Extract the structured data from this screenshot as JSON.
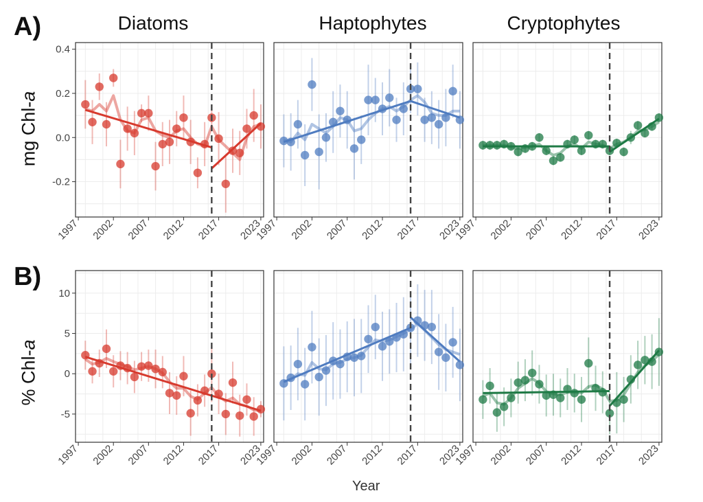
{
  "panel_labels": [
    "A)",
    "B)"
  ],
  "facets": [
    "Diatoms",
    "Haptophytes",
    "Cryptophytes"
  ],
  "xlabel": "Year",
  "ylabel_top": {
    "prefix": "mg Chl-",
    "italic": "a"
  },
  "ylabel_bottom": {
    "prefix": "% Chl-",
    "italic": "a"
  },
  "colors": {
    "Diatoms": "#d73a2e",
    "Haptophytes": "#4f7cc0",
    "Cryptophytes": "#1e7a45"
  },
  "chart_data": [
    {
      "type": "scatter",
      "panel": "A",
      "facet": "Diatoms",
      "xlim": [
        1997,
        2023
      ],
      "ylim": [
        -0.36,
        0.43
      ],
      "yticks": [
        -0.2,
        0.0,
        0.2,
        0.4
      ],
      "ytick_labels": [
        "-0.2",
        "0.0",
        "0.2",
        "0.4"
      ],
      "xticks": [
        1997,
        2002,
        2007,
        2012,
        2017,
        2023
      ],
      "breakpoint": 2016,
      "x": [
        1998,
        1999,
        2000,
        2001,
        2002,
        2003,
        2004,
        2005,
        2006,
        2007,
        2008,
        2009,
        2010,
        2011,
        2012,
        2013,
        2014,
        2015,
        2016,
        2017,
        2018,
        2019,
        2020,
        2021,
        2022,
        2023
      ],
      "y": [
        0.15,
        0.07,
        0.23,
        0.06,
        0.27,
        -0.12,
        0.04,
        0.02,
        0.11,
        0.11,
        -0.13,
        -0.03,
        -0.02,
        0.04,
        0.09,
        -0.02,
        -0.16,
        -0.03,
        0.09,
        -0.005,
        -0.21,
        -0.06,
        -0.07,
        0.04,
        0.1,
        0.05
      ],
      "err": [
        0.11,
        0.1,
        0.06,
        0.1,
        0.04,
        0.11,
        0.1,
        0.1,
        0.04,
        0.08,
        0.11,
        0.1,
        0.1,
        0.08,
        0.1,
        0.1,
        0.07,
        0.1,
        0.05,
        0.12,
        0.13,
        0.1,
        0.1,
        0.09,
        0.12,
        0.1
      ],
      "smooth": [
        0.13,
        0.12,
        0.15,
        0.12,
        0.19,
        0.08,
        0.03,
        0.02,
        0.08,
        0.09,
        0.03,
        0.01,
        0.0,
        0.03,
        0.04,
        0.0,
        -0.03,
        -0.04,
        0.05,
        -0.01,
        -0.04,
        -0.07,
        -0.1,
        0.0,
        0.05,
        0.06
      ],
      "trend_segments": [
        [
          1998,
          0.125,
          2016,
          -0.045
        ],
        [
          2016,
          -0.14,
          2023,
          0.065
        ]
      ]
    },
    {
      "type": "scatter",
      "panel": "A",
      "facet": "Haptophytes",
      "xlim": [
        1997,
        2023
      ],
      "ylim": [
        -0.36,
        0.43
      ],
      "xticks": [
        1997,
        2002,
        2007,
        2012,
        2017,
        2023
      ],
      "breakpoint": 2016,
      "x": [
        1998,
        1999,
        2000,
        2001,
        2002,
        2003,
        2004,
        2005,
        2006,
        2007,
        2008,
        2009,
        2010,
        2011,
        2012,
        2013,
        2014,
        2015,
        2016,
        2017,
        2018,
        2019,
        2020,
        2021,
        2022,
        2023
      ],
      "y": [
        -0.015,
        -0.02,
        0.06,
        -0.08,
        0.24,
        -0.065,
        0.0,
        0.07,
        0.12,
        0.08,
        -0.05,
        -0.01,
        0.17,
        0.17,
        0.13,
        0.18,
        0.08,
        0.13,
        0.22,
        0.22,
        0.08,
        0.09,
        0.06,
        0.09,
        0.21,
        0.08
      ],
      "err": [
        0.12,
        0.13,
        0.11,
        0.14,
        0.12,
        0.17,
        0.11,
        0.14,
        0.12,
        0.13,
        0.14,
        0.11,
        0.16,
        0.1,
        0.12,
        0.13,
        0.1,
        0.12,
        0.11,
        0.12,
        0.1,
        0.12,
        0.11,
        0.13,
        0.12,
        0.13
      ],
      "smooth": [
        -0.01,
        -0.02,
        0.02,
        -0.01,
        0.06,
        0.04,
        0.02,
        0.05,
        0.09,
        0.08,
        0.03,
        0.04,
        0.08,
        0.11,
        0.13,
        0.14,
        0.12,
        0.14,
        0.17,
        0.19,
        0.16,
        0.11,
        0.1,
        0.1,
        0.12,
        0.12
      ],
      "trend_segments": [
        [
          1998,
          -0.02,
          2016,
          0.165
        ],
        [
          2016,
          0.165,
          2023,
          0.09
        ]
      ]
    },
    {
      "type": "scatter",
      "panel": "A",
      "facet": "Cryptophytes",
      "xlim": [
        1997,
        2023
      ],
      "ylim": [
        -0.36,
        0.43
      ],
      "xticks": [
        1997,
        2002,
        2007,
        2012,
        2017,
        2023
      ],
      "breakpoint": 2016,
      "x": [
        1998,
        1999,
        2000,
        2001,
        2002,
        2003,
        2004,
        2005,
        2006,
        2007,
        2008,
        2009,
        2010,
        2011,
        2012,
        2013,
        2014,
        2015,
        2016,
        2017,
        2018,
        2019,
        2020,
        2021,
        2022,
        2023
      ],
      "y": [
        -0.035,
        -0.035,
        -0.035,
        -0.03,
        -0.04,
        -0.065,
        -0.05,
        -0.04,
        0.0,
        -0.06,
        -0.105,
        -0.09,
        -0.03,
        -0.01,
        -0.06,
        0.01,
        -0.03,
        -0.03,
        -0.06,
        -0.025,
        -0.065,
        0.0,
        0.055,
        0.02,
        0.05,
        0.09
      ],
      "err": [
        0.02,
        0.02,
        0.02,
        0.02,
        0.02,
        0.02,
        0.02,
        0.02,
        0.02,
        0.02,
        0.02,
        0.02,
        0.02,
        0.02,
        0.02,
        0.02,
        0.02,
        0.02,
        0.02,
        0.02,
        0.02,
        0.03,
        0.02,
        0.02,
        0.02,
        0.02
      ],
      "smooth": [
        -0.035,
        -0.035,
        -0.035,
        -0.035,
        -0.045,
        -0.05,
        -0.045,
        -0.04,
        -0.03,
        -0.06,
        -0.08,
        -0.07,
        -0.04,
        -0.03,
        -0.05,
        -0.02,
        -0.03,
        -0.035,
        -0.05,
        -0.03,
        -0.02,
        0.0,
        0.03,
        0.035,
        0.05,
        0.07
      ],
      "trend_segments": [
        [
          1998,
          -0.04,
          2016,
          -0.04
        ],
        [
          2016,
          -0.065,
          2023,
          0.085
        ]
      ]
    },
    {
      "type": "scatter",
      "panel": "B",
      "facet": "Diatoms",
      "xlim": [
        1997,
        2023
      ],
      "ylim": [
        -8.5,
        12.8
      ],
      "yticks": [
        -5,
        0,
        5,
        10
      ],
      "ytick_labels": [
        "-5",
        "0",
        "5",
        "10"
      ],
      "xticks": [
        1997,
        2002,
        2007,
        2012,
        2017,
        2023
      ],
      "breakpoint": 2016,
      "x": [
        1998,
        1999,
        2000,
        2001,
        2002,
        2003,
        2004,
        2005,
        2006,
        2007,
        2008,
        2009,
        2010,
        2011,
        2012,
        2013,
        2014,
        2015,
        2016,
        2017,
        2018,
        2019,
        2020,
        2021,
        2022,
        2023
      ],
      "y": [
        2.3,
        0.3,
        1.3,
        3.1,
        0.3,
        1.0,
        0.7,
        -0.4,
        0.9,
        1.0,
        0.6,
        0.2,
        -2.4,
        -2.7,
        -0.3,
        -4.9,
        -3.3,
        -2.1,
        0.0,
        -2.5,
        -5.0,
        -1.1,
        -5.2,
        -3.2,
        -5.3,
        -4.4
      ],
      "err": [
        1.8,
        1.5,
        1.7,
        2.4,
        2.0,
        1.8,
        2.0,
        2.0,
        1.8,
        2.0,
        2.4,
        2.0,
        2.6,
        2.4,
        2.5,
        2.8,
        2.0,
        2.0,
        3.5,
        2.5,
        2.6,
        2.6,
        2.6,
        2.0,
        2.4,
        1.0
      ],
      "smooth": [
        1.8,
        1.2,
        1.4,
        1.9,
        1.5,
        1.2,
        0.9,
        0.5,
        0.7,
        0.9,
        0.6,
        0.1,
        -1.0,
        -1.8,
        -1.8,
        -2.8,
        -3.2,
        -2.4,
        -1.7,
        -2.8,
        -3.4,
        -3.0,
        -3.8,
        -4.0,
        -4.5,
        -4.6
      ],
      "trend_segments": [
        [
          1998,
          2.1,
          2023,
          -4.6
        ]
      ]
    },
    {
      "type": "scatter",
      "panel": "B",
      "facet": "Haptophytes",
      "xlim": [
        1997,
        2023
      ],
      "ylim": [
        -8.5,
        12.8
      ],
      "xticks": [
        1997,
        2002,
        2007,
        2012,
        2017,
        2023
      ],
      "breakpoint": 2016,
      "x": [
        1998,
        1999,
        2000,
        2001,
        2002,
        2003,
        2004,
        2005,
        2006,
        2007,
        2008,
        2009,
        2010,
        2011,
        2012,
        2013,
        2014,
        2015,
        2016,
        2017,
        2018,
        2019,
        2020,
        2021,
        2022,
        2023
      ],
      "y": [
        -1.2,
        -0.5,
        1.2,
        -1.3,
        3.3,
        -0.4,
        0.4,
        1.6,
        1.2,
        2.1,
        2.0,
        2.2,
        4.3,
        5.8,
        3.4,
        4.0,
        4.5,
        4.9,
        5.7,
        6.6,
        6.0,
        5.8,
        2.7,
        2.0,
        3.9,
        1.1
      ],
      "err": [
        4.6,
        4.0,
        4.5,
        4.5,
        4.5,
        4.8,
        4.4,
        4.8,
        4.3,
        4.4,
        4.8,
        4.6,
        4.2,
        4.0,
        4.3,
        4.0,
        4.3,
        4.6,
        4.5,
        4.5,
        4.4,
        4.6,
        4.7,
        4.2,
        4.4,
        4.5
      ],
      "smooth": [
        -1.0,
        -0.7,
        0.0,
        -0.2,
        1.4,
        0.6,
        0.5,
        1.2,
        1.4,
        1.8,
        2.0,
        2.3,
        3.3,
        4.2,
        4.0,
        4.2,
        4.6,
        5.0,
        5.5,
        6.2,
        5.4,
        4.5,
        3.6,
        3.0,
        2.7,
        2.4
      ],
      "trend_segments": [
        [
          1998,
          -1.0,
          2016,
          5.7
        ],
        [
          2016,
          7.0,
          2023,
          1.5
        ]
      ]
    },
    {
      "type": "scatter",
      "panel": "B",
      "facet": "Cryptophytes",
      "xlim": [
        1997,
        2023
      ],
      "ylim": [
        -8.5,
        12.8
      ],
      "xticks": [
        1997,
        2002,
        2007,
        2012,
        2017,
        2023
      ],
      "breakpoint": 2016,
      "x": [
        1998,
        1999,
        2000,
        2001,
        2002,
        2003,
        2004,
        2005,
        2006,
        2007,
        2008,
        2009,
        2010,
        2011,
        2012,
        2013,
        2014,
        2015,
        2016,
        2017,
        2018,
        2019,
        2020,
        2021,
        2022,
        2023
      ],
      "y": [
        -3.2,
        -1.5,
        -4.8,
        -4.1,
        -3.0,
        -1.1,
        -0.8,
        0.1,
        -1.3,
        -2.7,
        -2.6,
        -3.0,
        -1.9,
        -2.4,
        -3.2,
        1.3,
        -1.8,
        -2.3,
        -4.9,
        -3.6,
        -3.2,
        -0.7,
        1.1,
        1.7,
        1.5,
        2.7
      ],
      "err": [
        2.4,
        2.2,
        2.4,
        2.4,
        2.4,
        2.6,
        2.6,
        2.8,
        2.4,
        2.6,
        2.6,
        2.4,
        2.6,
        2.4,
        2.8,
        3.2,
        2.8,
        2.6,
        2.6,
        3.8,
        2.8,
        3.0,
        3.0,
        3.0,
        3.4,
        4.2
      ],
      "smooth": [
        -2.8,
        -2.4,
        -3.6,
        -3.8,
        -3.0,
        -1.8,
        -1.2,
        -0.6,
        -1.2,
        -2.2,
        -2.5,
        -2.6,
        -2.3,
        -2.3,
        -2.4,
        -1.6,
        -1.4,
        -1.9,
        -3.4,
        -3.3,
        -2.6,
        -1.2,
        0.2,
        1.0,
        1.6,
        2.4
      ],
      "trend_segments": [
        [
          1998,
          -2.4,
          2016,
          -2.15
        ],
        [
          2016,
          -4.0,
          2023,
          2.9
        ]
      ]
    }
  ]
}
